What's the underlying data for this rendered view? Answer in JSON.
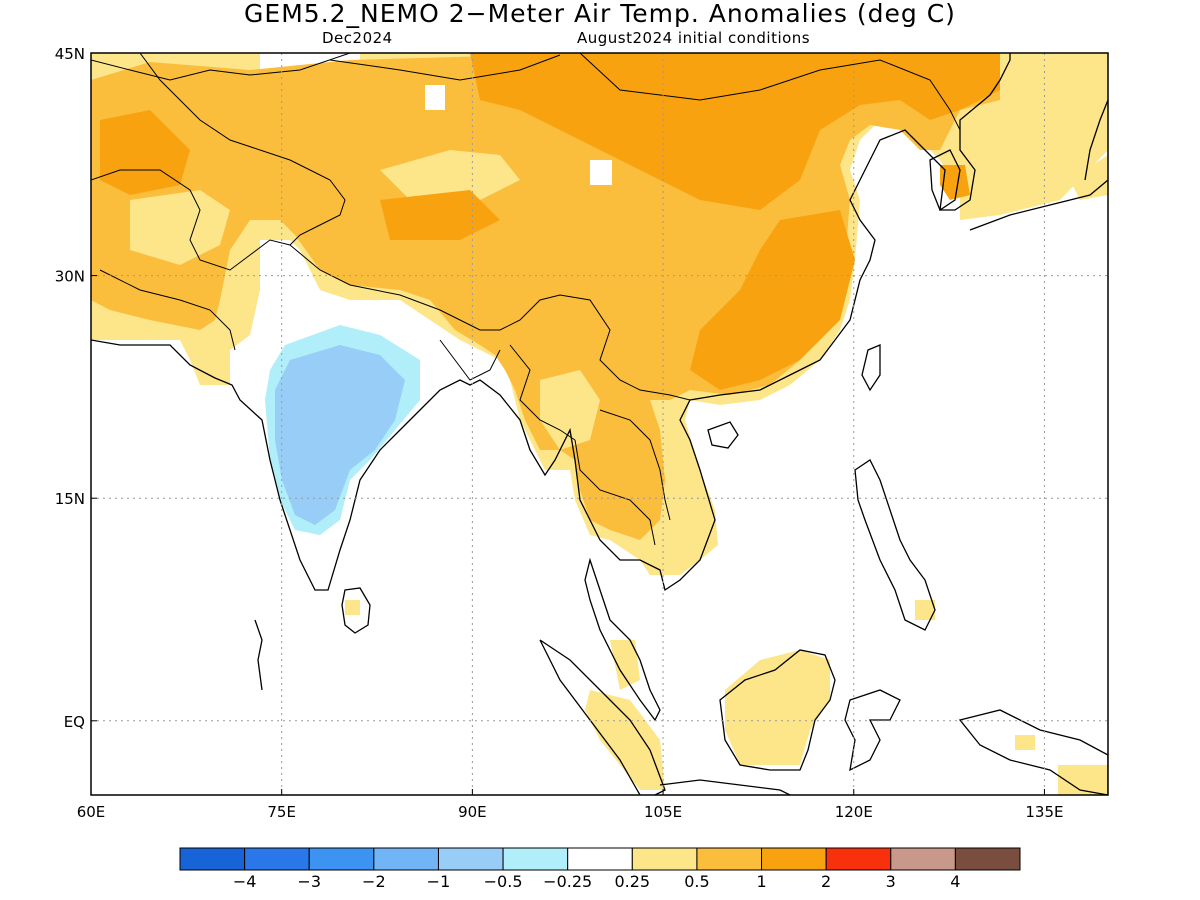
{
  "header": {
    "title": "GEM5.2_NEMO 2−Meter Air Temp. Anomalies (deg C)",
    "month": "Dec2024",
    "init": "August2024 initial conditions"
  },
  "map": {
    "lon_range": [
      60,
      140
    ],
    "lat_range": [
      -5,
      45
    ],
    "lon_ticks": [
      {
        "value": 60,
        "label": "60E"
      },
      {
        "value": 75,
        "label": "75E"
      },
      {
        "value": 90,
        "label": "90E"
      },
      {
        "value": 105,
        "label": "105E"
      },
      {
        "value": 120,
        "label": "120E"
      },
      {
        "value": 135,
        "label": "135E"
      }
    ],
    "lat_ticks": [
      {
        "value": 45,
        "label": "45N"
      },
      {
        "value": 30,
        "label": "30N"
      },
      {
        "value": 15,
        "label": "15N"
      },
      {
        "value": 0,
        "label": "EQ"
      }
    ],
    "colors": {
      "land_outline": "#000000",
      "grid": "#9a9a9a",
      "anom_025_05": "#fde58a",
      "anom_05_1": "#fbbd3c",
      "anom_1_2": "#f9a20f",
      "anom_neg_025_05": "#b0eefa",
      "anom_neg_05_1": "#97cdf7"
    }
  },
  "colorbar": {
    "colors": [
      "#1764d8",
      "#2a77ea",
      "#3d93f2",
      "#72b5f7",
      "#97cdf7",
      "#b0eefa",
      "#ffffff",
      "#fde58a",
      "#fbbd3c",
      "#f9a20f",
      "#f9300c",
      "#c8988a",
      "#7a4e3e"
    ],
    "labels": [
      "−4",
      "−3",
      "−2",
      "−1",
      "−0.5",
      "−0.25",
      "0.25",
      "0.5",
      "1",
      "2",
      "3",
      "4"
    ]
  }
}
